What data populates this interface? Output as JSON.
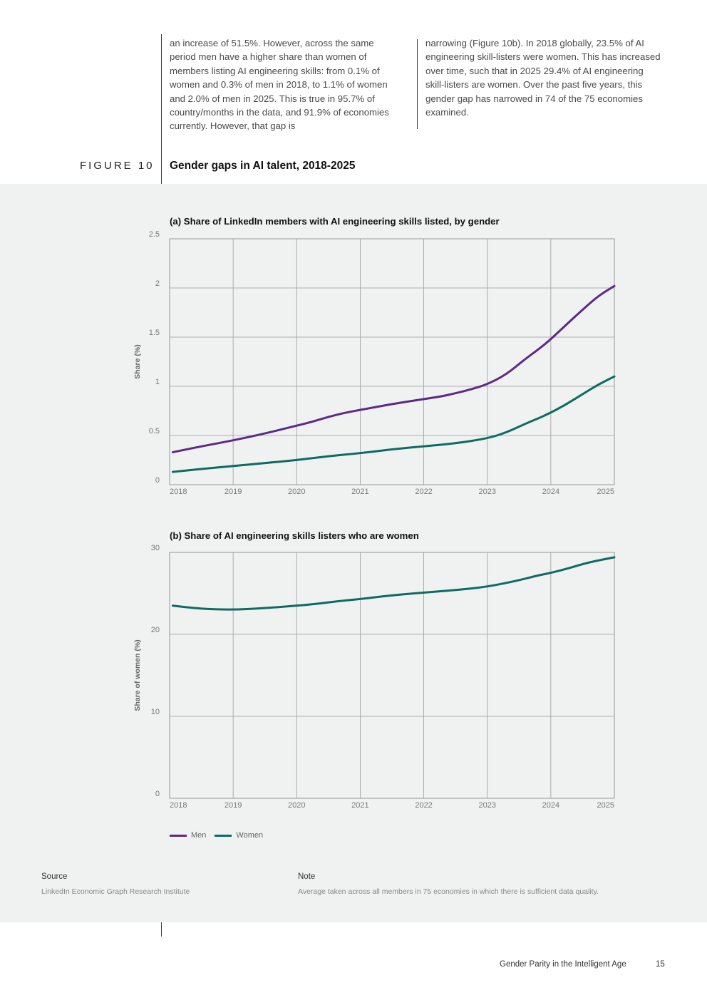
{
  "body_text": {
    "col1": "an increase of 51.5%. However, across the same period men have a higher share than women of members listing AI engineering skills: from 0.1% of women and 0.3% of men in 2018, to 1.1% of women and 2.0% of men in 2025. This is true in 95.7% of country/months in the data, and 91.9% of economies currently. However, that gap is",
    "col2": "narrowing (Figure 10b). In 2018 globally, 23.5% of AI engineering skill-listers were women. This has increased over time, such that in 2025 29.4% of AI engineering skill-listers are women. Over the past five years, this gender gap has narrowed in 74 of the 75 economies examined."
  },
  "figure": {
    "label": "FIGURE 10",
    "title": "Gender gaps in AI talent, 2018-2025"
  },
  "chart_data": [
    {
      "type": "line",
      "title": "(a) Share of LinkedIn members with AI engineering skills listed, by gender",
      "xlabel": "",
      "ylabel": "Share (%)",
      "xlim": [
        2018,
        2025
      ],
      "ylim": [
        0,
        2.5
      ],
      "x_ticks": [
        "2018",
        "2019",
        "2020",
        "2021",
        "2022",
        "2023",
        "2024",
        "2025"
      ],
      "y_ticks": [
        "0",
        "0.5",
        "1",
        "1.5",
        "2",
        "2.5"
      ],
      "grid": true,
      "series": [
        {
          "name": "Men",
          "color": "#5b2a86",
          "x": [
            2018.05,
            2018.5,
            2019,
            2019.5,
            2020,
            2020.25,
            2020.5,
            2020.75,
            2021,
            2021.5,
            2022,
            2022.3,
            2022.5,
            2022.75,
            2023,
            2023.3,
            2023.6,
            2023.9,
            2024.2,
            2024.5,
            2024.75,
            2025
          ],
          "y": [
            0.33,
            0.39,
            0.45,
            0.52,
            0.6,
            0.64,
            0.69,
            0.73,
            0.76,
            0.82,
            0.87,
            0.9,
            0.93,
            0.97,
            1.02,
            1.12,
            1.28,
            1.42,
            1.6,
            1.78,
            1.92,
            2.02
          ]
        },
        {
          "name": "Women",
          "color": "#0e6b62",
          "x": [
            2018.05,
            2018.5,
            2019,
            2019.5,
            2020,
            2020.5,
            2021,
            2021.5,
            2022,
            2022.5,
            2023,
            2023.3,
            2023.6,
            2023.9,
            2024.2,
            2024.5,
            2024.75,
            2025
          ],
          "y": [
            0.13,
            0.16,
            0.19,
            0.22,
            0.25,
            0.29,
            0.32,
            0.36,
            0.39,
            0.42,
            0.47,
            0.53,
            0.62,
            0.7,
            0.8,
            0.92,
            1.02,
            1.1
          ]
        }
      ]
    },
    {
      "type": "line",
      "title": "(b) Share of AI engineering skills listers who are women",
      "xlabel": "",
      "ylabel": "Share of women (%)",
      "xlim": [
        2018,
        2025
      ],
      "ylim": [
        0,
        30
      ],
      "x_ticks": [
        "2018",
        "2019",
        "2020",
        "2021",
        "2022",
        "2023",
        "2024",
        "2025"
      ],
      "y_ticks": [
        "0",
        "10",
        "20",
        "30"
      ],
      "grid": true,
      "series": [
        {
          "name": "Women",
          "color": "#0e6b62",
          "x": [
            2018.05,
            2018.5,
            2019,
            2019.5,
            2020,
            2020.3,
            2020.7,
            2021,
            2021.3,
            2021.7,
            2022,
            2022.5,
            2023,
            2023.5,
            2023.8,
            2024,
            2024.3,
            2024.6,
            2025
          ],
          "y": [
            23.5,
            23.1,
            23.0,
            23.2,
            23.5,
            23.7,
            24.1,
            24.3,
            24.6,
            24.9,
            25.1,
            25.4,
            25.8,
            26.6,
            27.2,
            27.5,
            28.1,
            28.8,
            29.4
          ]
        }
      ]
    }
  ],
  "legend": [
    {
      "label": "Men",
      "color": "#5b2a86"
    },
    {
      "label": "Women",
      "color": "#0e6b62"
    }
  ],
  "source": {
    "heading": "Source",
    "text": "LinkedIn Economic Graph Research Institute"
  },
  "note": {
    "heading": "Note",
    "text": "Average taken across all members in 75 economies in which there is sufficient data quality."
  },
  "footer": {
    "title": "Gender Parity in the Intelligent Age",
    "page": "15"
  }
}
